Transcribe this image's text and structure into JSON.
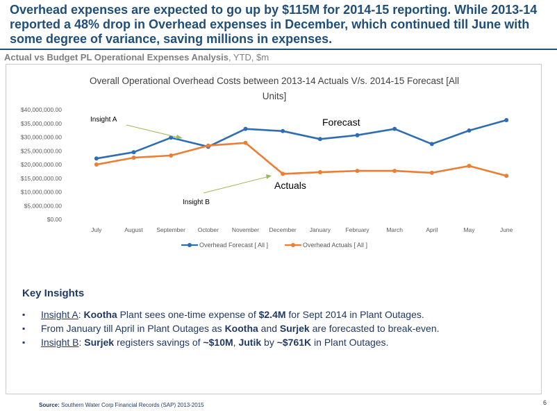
{
  "headline": "Overhead expenses are expected to go up by $115M for 2014-15 reporting. While 2013-14 reported a 48% drop in Overhead expenses in December, which continued till June with some degree of variance, saving millions in expenses.",
  "subtitle": {
    "bold": "Actual vs Budget PL Operational Expenses Analysis",
    "rest": ", YTD, $m"
  },
  "chart_data": {
    "type": "line",
    "title_line1": "Overall Operational Overhead Costs between 2013-14 Actuals V/s. 2014-15 Forecast [All",
    "title_line2": "Units]",
    "categories": [
      "July",
      "August",
      "September",
      "October",
      "November",
      "December",
      "January",
      "February",
      "March",
      "April",
      "May",
      "June"
    ],
    "ylim": [
      0,
      40000000
    ],
    "yticks": [
      "$0.00",
      "$5,000,000.00",
      "$10,000,000.00",
      "$15,000,000.00",
      "$20,000,000.00",
      "$25,000,000.00",
      "$30,000,000.00",
      "$35,000,000.00",
      "$40,000,000.00"
    ],
    "series": [
      {
        "name": "Overhead Forecast [ All ]",
        "color": "#2E6DB4",
        "values": [
          22200000,
          24500000,
          29800000,
          26500000,
          33000000,
          32200000,
          29300000,
          30700000,
          33000000,
          27500000,
          32400000,
          36200000
        ]
      },
      {
        "name": "Overhead Actuals [ All ]",
        "color": "#ED7D31",
        "values": [
          20000000,
          22500000,
          23300000,
          26900000,
          27900000,
          16600000,
          17200000,
          17700000,
          17700000,
          17000000,
          19500000,
          15900000
        ]
      }
    ],
    "annotations": {
      "insight_a": "Insight A",
      "insight_b": "Insight B",
      "forecast": "Forecast",
      "actuals": "Actuals"
    },
    "grid": false,
    "legend": "bottom"
  },
  "insights": {
    "heading": "Key Insights",
    "item1": {
      "link": "Insight A",
      "colon": ": ",
      "b1": "Kootha",
      "t1": " Plant sees one-time expense of ",
      "b2": "$2.4M",
      "t2": " for Sept 2014 in Plant Outages."
    },
    "item2": {
      "t1": "From January till April in Plant Outages as ",
      "b1": "Kootha",
      "t2": " and ",
      "b2": "Surjek",
      "t3": " are forecasted to break-even."
    },
    "item3": {
      "link": "Insight B",
      "colon": ": ",
      "b1": "Surjek",
      "t1": " registers savings of ",
      "b2": "~$10M",
      "t2": ", ",
      "b3": "Jutik",
      "t3": " by ",
      "b4": "~$761K",
      "t4": " in Plant Outages."
    }
  },
  "footer": {
    "bold": "Source:",
    "text": " Southern Water Corp Financial Records (SAP) 2013-2015"
  },
  "page_number": "6"
}
